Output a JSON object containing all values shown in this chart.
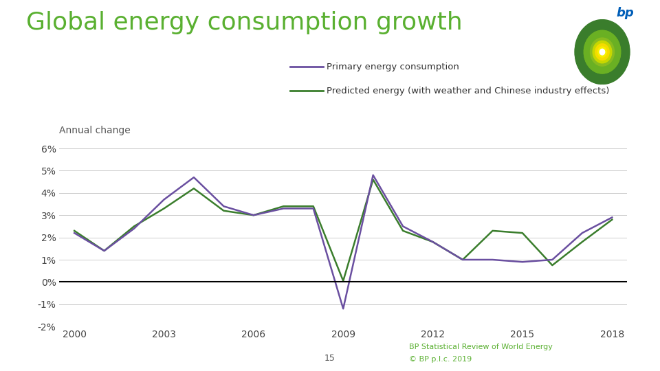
{
  "title": "Global energy consumption growth",
  "ylabel": "Annual change",
  "background_color": "#ffffff",
  "title_color": "#5ab031",
  "title_fontsize": 26,
  "ylabel_fontsize": 10,
  "years": [
    2000,
    2001,
    2002,
    2003,
    2004,
    2005,
    2006,
    2007,
    2008,
    2009,
    2010,
    2011,
    2012,
    2013,
    2014,
    2015,
    2016,
    2017,
    2018
  ],
  "primary_energy": [
    2.2,
    1.4,
    2.4,
    3.7,
    4.7,
    3.4,
    3.0,
    3.3,
    3.3,
    -1.2,
    4.8,
    2.5,
    1.8,
    1.0,
    1.0,
    0.9,
    1.0,
    2.2,
    2.9
  ],
  "predicted_energy": [
    2.3,
    1.4,
    2.5,
    3.3,
    4.2,
    3.2,
    3.0,
    3.4,
    3.4,
    0.05,
    4.6,
    2.3,
    1.8,
    1.0,
    2.3,
    2.2,
    0.75,
    1.8,
    2.8
  ],
  "primary_color": "#6a4fa0",
  "predicted_color": "#3a7d2c",
  "ylim": [
    -2.0,
    6.0
  ],
  "xlim": [
    1999.5,
    2018.5
  ],
  "yticks": [
    -2,
    -1,
    0,
    1,
    2,
    3,
    4,
    5,
    6
  ],
  "xticks": [
    2000,
    2003,
    2006,
    2009,
    2012,
    2015,
    2018
  ],
  "grid_color": "#cccccc",
  "zero_line_color": "#000000",
  "legend_primary": "Primary energy consumption",
  "legend_predicted": "Predicted energy (with weather and Chinese industry effects)",
  "footer_text1": "BP Statistical Review of World Energy",
  "footer_text2": "© BP p.l.c. 2019",
  "footer_color": "#5ab031",
  "page_number": "15",
  "bp_green_outer": "#3a7d2c",
  "bp_green_inner": "#6ab023",
  "bp_yellow": "#f5dc00",
  "bp_white": "#ffffff",
  "bp_text_color": "#005eb8"
}
